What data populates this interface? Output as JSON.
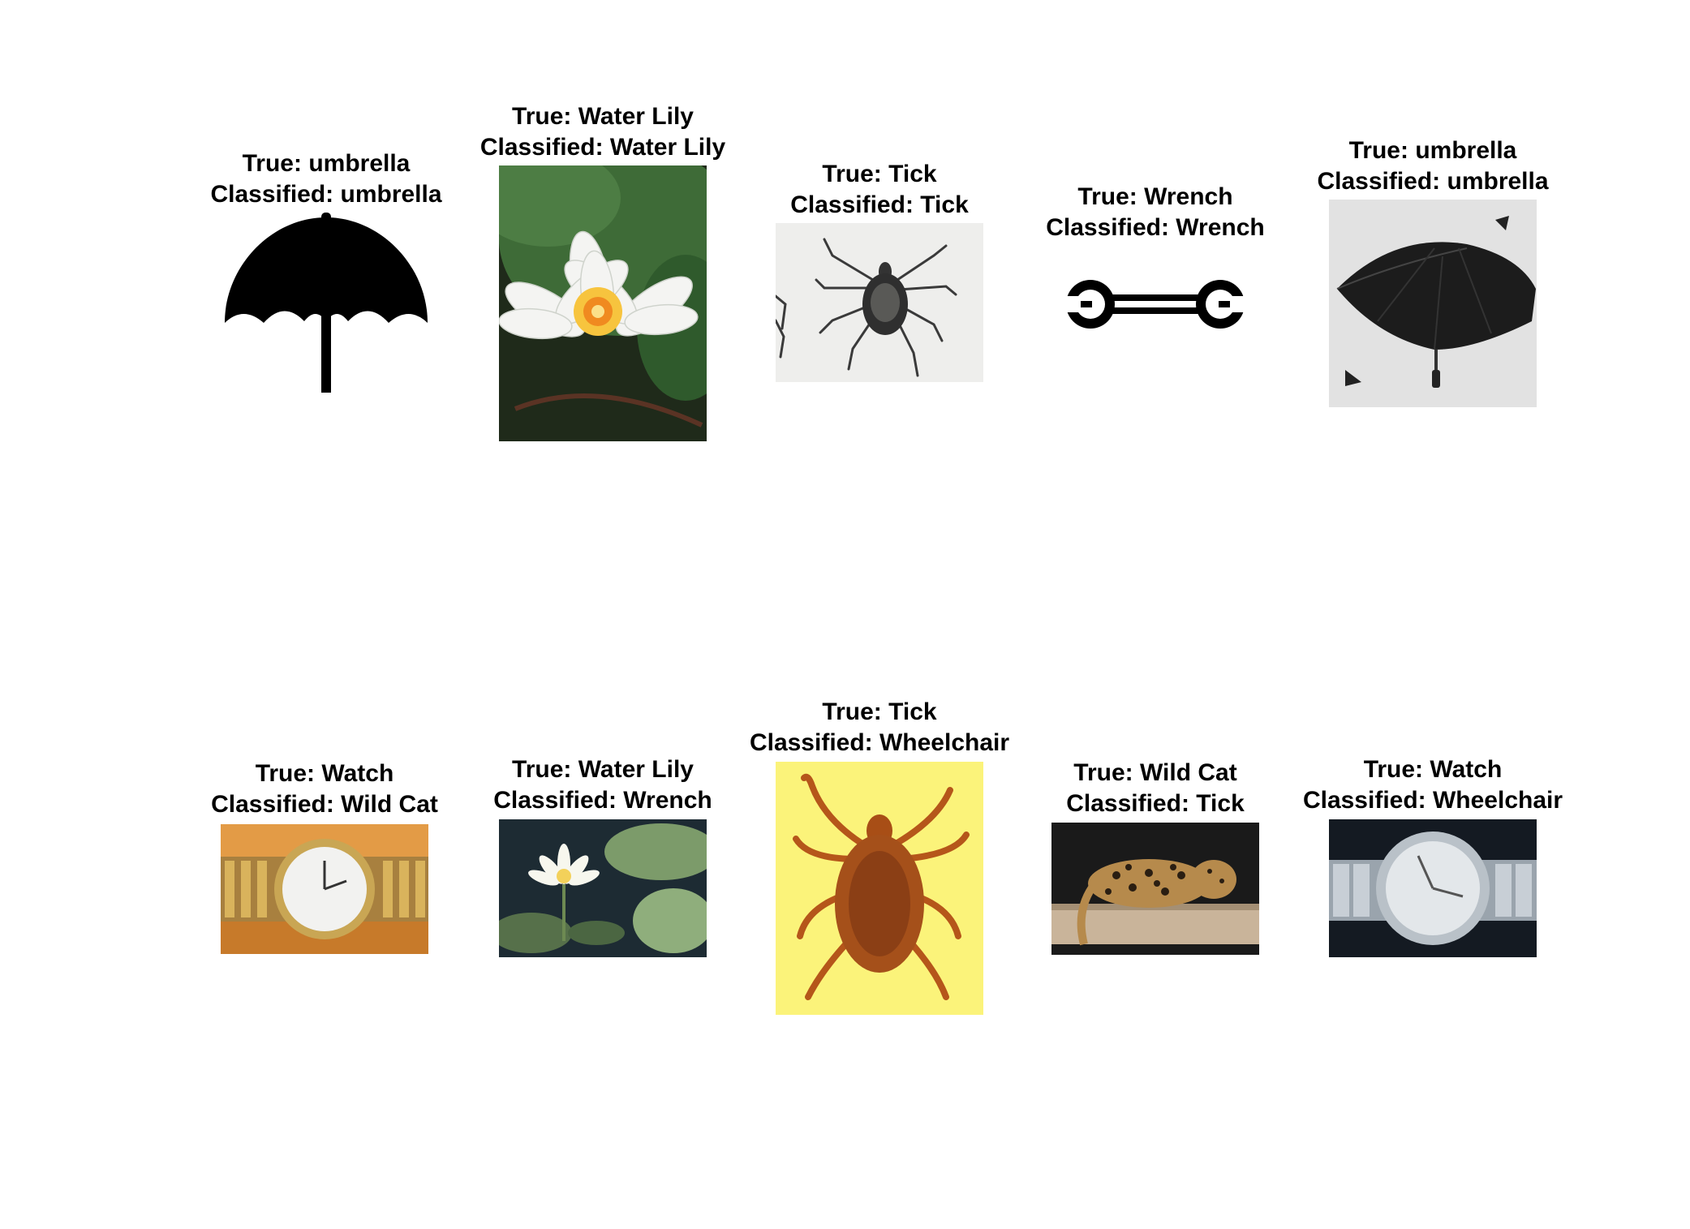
{
  "panels": [
    {
      "true_label": "True: umbrella",
      "classified_label": "Classified: umbrella",
      "image": "umbrella-silhouette"
    },
    {
      "true_label": "True: Water Lily",
      "classified_label": "Classified: Water Lily",
      "image": "white-water-lily-photo"
    },
    {
      "true_label": "True: Tick",
      "classified_label": "Classified: Tick",
      "image": "tick-on-white-photo"
    },
    {
      "true_label": "True: Wrench",
      "classified_label": "Classified: Wrench",
      "image": "wrench-icon"
    },
    {
      "true_label": "True: umbrella",
      "classified_label": "Classified: umbrella",
      "image": "black-umbrella-photo"
    },
    {
      "true_label": "True: Watch",
      "classified_label": "Classified: Wild Cat",
      "image": "gold-watch-photo"
    },
    {
      "true_label": "True: Water Lily",
      "classified_label": "Classified: Wrench",
      "image": "water-lily-pond-photo"
    },
    {
      "true_label": "True: Tick",
      "classified_label": "Classified: Wheelchair",
      "image": "tick-on-yellow-photo"
    },
    {
      "true_label": "True: Wild Cat",
      "classified_label": "Classified: Tick",
      "image": "wild-cat-photo"
    },
    {
      "true_label": "True: Watch",
      "classified_label": "Classified: Wheelchair",
      "image": "silver-watch-photo"
    }
  ]
}
